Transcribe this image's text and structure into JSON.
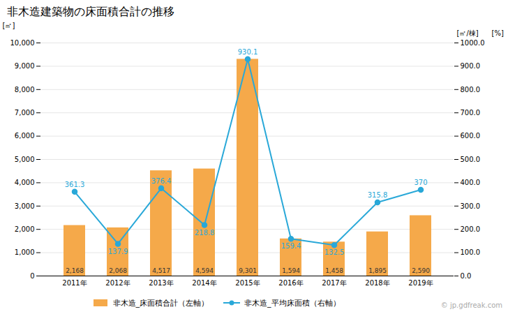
{
  "chart_data": {
    "type": "bar",
    "title": "非木造建築物の床面積合計の推移",
    "categories": [
      "2011年",
      "2012年",
      "2013年",
      "2014年",
      "2015年",
      "2016年",
      "2017年",
      "2018年",
      "2019年"
    ],
    "series": [
      {
        "name": "非木造_床面積合計（左軸）",
        "type": "bar",
        "color": "#F5A94A",
        "values": [
          2168,
          2068,
          4517,
          4594,
          9301,
          1594,
          1458,
          1895,
          2590
        ],
        "value_labels": [
          "2,168",
          "2,068",
          "4,517",
          "4,594",
          "9,301",
          "1,594",
          "1,458",
          "1,895",
          "2,590"
        ],
        "data_labels": true
      },
      {
        "name": "非木造_平均床面積（右軸）",
        "type": "line",
        "axis": "y2",
        "color": "#29A8D8",
        "marker": "circle",
        "values": [
          361.3,
          137.9,
          376.4,
          218.8,
          930.1,
          159.4,
          132.5,
          315.8,
          370
        ],
        "data_labels": true
      }
    ],
    "ylabel": "[㎡]",
    "y2label": [
      "[㎡/棟]",
      "[%]"
    ],
    "ylim": [
      0,
      10000
    ],
    "yticks": [
      0,
      {
        "value": 1000,
        "label": "1,000"
      },
      {
        "value": 2000,
        "label": "2,000"
      },
      {
        "value": 3000,
        "label": "3,000"
      },
      {
        "value": 4000,
        "label": "4,000"
      },
      {
        "value": 5000,
        "label": "5,000"
      },
      {
        "value": 6000,
        "label": "6,000"
      },
      {
        "value": 7000,
        "label": "7,000"
      },
      {
        "value": 8000,
        "label": "8,000"
      },
      {
        "value": 9000,
        "label": "9,000"
      },
      {
        "value": 10000,
        "label": "10,000"
      }
    ],
    "y2lim": [
      0,
      1000
    ],
    "y2ticks": [
      {
        "value": 0,
        "label": "0.0"
      },
      {
        "value": 100,
        "label": "100.0"
      },
      {
        "value": 200,
        "label": "200.0"
      },
      {
        "value": 300,
        "label": "300.0"
      },
      {
        "value": 400,
        "label": "400.0"
      },
      {
        "value": 500,
        "label": "500.0"
      },
      {
        "value": 600,
        "label": "600.0"
      },
      {
        "value": 700,
        "label": "700.0"
      },
      {
        "value": 800,
        "label": "800.0"
      },
      {
        "value": 900,
        "label": "900.0"
      },
      {
        "value": 1000,
        "label": "1000.0"
      }
    ],
    "grid": true,
    "legend": "bottom",
    "annotations": [
      "© jp.gdfreak.com"
    ]
  }
}
